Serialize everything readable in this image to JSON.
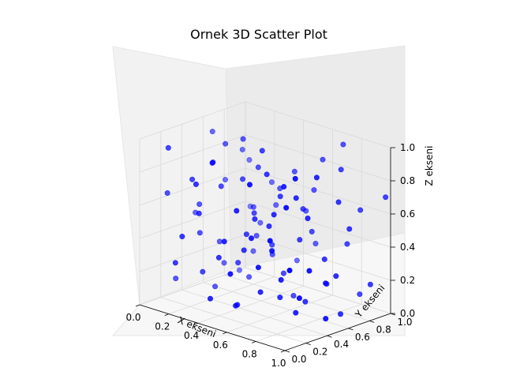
{
  "chart_data": {
    "type": "scatter",
    "projection": "3d",
    "title": "Ornek 3D Scatter Plot",
    "xlabel": "X ekseni",
    "ylabel": "Y ekseni",
    "zlabel": "Z ekseni",
    "xlim": [
      0,
      1
    ],
    "ylim": [
      0,
      1
    ],
    "zlim": [
      0,
      1
    ],
    "xticks": [
      "0.0",
      "0.2",
      "0.4",
      "0.6",
      "0.8",
      "1.0"
    ],
    "yticks": [
      "0.0",
      "0.2",
      "0.4",
      "0.6",
      "0.8",
      "1.0"
    ],
    "zticks": [
      "0.0",
      "0.2",
      "0.4",
      "0.6",
      "0.8",
      "1.0"
    ],
    "grid": true,
    "marker_color": "#0000ff",
    "points": [
      [
        0.05,
        0.62,
        0.92
      ],
      [
        0.08,
        0.7,
        0.62
      ],
      [
        0.1,
        0.9,
        0.7
      ],
      [
        0.12,
        0.4,
        0.55
      ],
      [
        0.15,
        0.55,
        0.3
      ],
      [
        0.18,
        0.25,
        0.75
      ],
      [
        0.2,
        0.8,
        0.2
      ],
      [
        0.22,
        0.1,
        0.45
      ],
      [
        0.25,
        0.35,
        0.85
      ],
      [
        0.28,
        0.65,
        0.1
      ],
      [
        0.3,
        0.15,
        0.6
      ],
      [
        0.32,
        0.85,
        0.5
      ],
      [
        0.35,
        0.45,
        0.25
      ],
      [
        0.38,
        0.6,
        0.8
      ],
      [
        0.4,
        0.2,
        0.35
      ],
      [
        0.42,
        0.75,
        0.65
      ],
      [
        0.45,
        0.05,
        0.15
      ],
      [
        0.48,
        0.5,
        0.95
      ],
      [
        0.5,
        0.3,
        0.4
      ],
      [
        0.52,
        0.95,
        0.3
      ],
      [
        0.55,
        0.7,
        0.05
      ],
      [
        0.58,
        0.12,
        0.7
      ],
      [
        0.6,
        0.4,
        0.55
      ],
      [
        0.62,
        0.88,
        0.85
      ],
      [
        0.65,
        0.25,
        0.2
      ],
      [
        0.68,
        0.58,
        0.45
      ],
      [
        0.7,
        0.08,
        0.9
      ],
      [
        0.72,
        0.78,
        0.15
      ],
      [
        0.75,
        0.45,
        0.75
      ],
      [
        0.78,
        0.18,
        0.5
      ],
      [
        0.8,
        0.65,
        0.35
      ],
      [
        0.82,
        0.35,
        0.1
      ],
      [
        0.85,
        0.92,
        0.6
      ],
      [
        0.88,
        0.55,
        0.25
      ],
      [
        0.9,
        0.15,
        0.8
      ],
      [
        0.92,
        0.72,
        0.55
      ],
      [
        0.95,
        0.3,
        0.4
      ],
      [
        0.97,
        0.85,
        0.2
      ],
      [
        0.03,
        0.3,
        0.1
      ],
      [
        0.07,
        0.95,
        0.4
      ],
      [
        0.11,
        0.12,
        0.95
      ],
      [
        0.14,
        0.78,
        0.8
      ],
      [
        0.17,
        0.48,
        0.05
      ],
      [
        0.21,
        0.05,
        0.3
      ],
      [
        0.24,
        0.92,
        0.6
      ],
      [
        0.27,
        0.4,
        0.7
      ],
      [
        0.31,
        0.68,
        0.35
      ],
      [
        0.34,
        0.22,
        0.9
      ],
      [
        0.37,
        0.98,
        0.15
      ],
      [
        0.41,
        0.52,
        0.55
      ],
      [
        0.44,
        0.32,
        0.05
      ],
      [
        0.47,
        0.82,
        0.75
      ],
      [
        0.51,
        0.1,
        0.5
      ],
      [
        0.54,
        0.62,
        0.2
      ],
      [
        0.57,
        0.42,
        0.85
      ],
      [
        0.61,
        0.02,
        0.35
      ],
      [
        0.64,
        0.75,
        0.45
      ],
      [
        0.67,
        0.35,
        0.65
      ],
      [
        0.71,
        0.95,
        0.95
      ],
      [
        0.74,
        0.55,
        0.1
      ],
      [
        0.77,
        0.28,
        0.3
      ],
      [
        0.81,
        0.85,
        0.4
      ],
      [
        0.84,
        0.08,
        0.6
      ],
      [
        0.87,
        0.48,
        0.9
      ],
      [
        0.91,
        0.65,
        0.05
      ],
      [
        0.94,
        0.22,
        0.25
      ],
      [
        0.98,
        0.98,
        0.7
      ],
      [
        0.02,
        0.5,
        0.45
      ],
      [
        0.06,
        0.18,
        0.65
      ],
      [
        0.13,
        0.62,
        0.15
      ],
      [
        0.19,
        0.88,
        0.35
      ],
      [
        0.23,
        0.28,
        0.2
      ],
      [
        0.29,
        0.58,
        0.95
      ],
      [
        0.33,
        0.08,
        0.8
      ],
      [
        0.39,
        0.72,
        0.25
      ],
      [
        0.43,
        0.42,
        0.45
      ],
      [
        0.49,
        0.9,
        0.5
      ],
      [
        0.53,
        0.18,
        0.1
      ],
      [
        0.59,
        0.52,
        0.7
      ],
      [
        0.63,
        0.68,
        0.6
      ],
      [
        0.69,
        0.38,
        0.15
      ],
      [
        0.73,
        0.12,
        0.4
      ],
      [
        0.79,
        0.82,
        0.85
      ],
      [
        0.83,
        0.45,
        0.65
      ],
      [
        0.89,
        0.25,
        0.95
      ],
      [
        0.93,
        0.58,
        0.3
      ],
      [
        0.99,
        0.4,
        0.1
      ],
      [
        0.16,
        0.35,
        0.4
      ],
      [
        0.26,
        0.72,
        0.5
      ],
      [
        0.36,
        0.48,
        0.75
      ],
      [
        0.46,
        0.62,
        0.35
      ],
      [
        0.56,
        0.88,
        0.65
      ],
      [
        0.66,
        0.15,
        0.55
      ],
      [
        0.76,
        0.32,
        0.85
      ],
      [
        0.86,
        0.7,
        0.7
      ],
      [
        0.96,
        0.1,
        0.45
      ],
      [
        0.09,
        0.82,
        0.05
      ],
      [
        0.19,
        0.55,
        0.9
      ],
      [
        0.56,
        0.32,
        0.6
      ],
      [
        0.86,
        0.9,
        0.1
      ]
    ]
  }
}
